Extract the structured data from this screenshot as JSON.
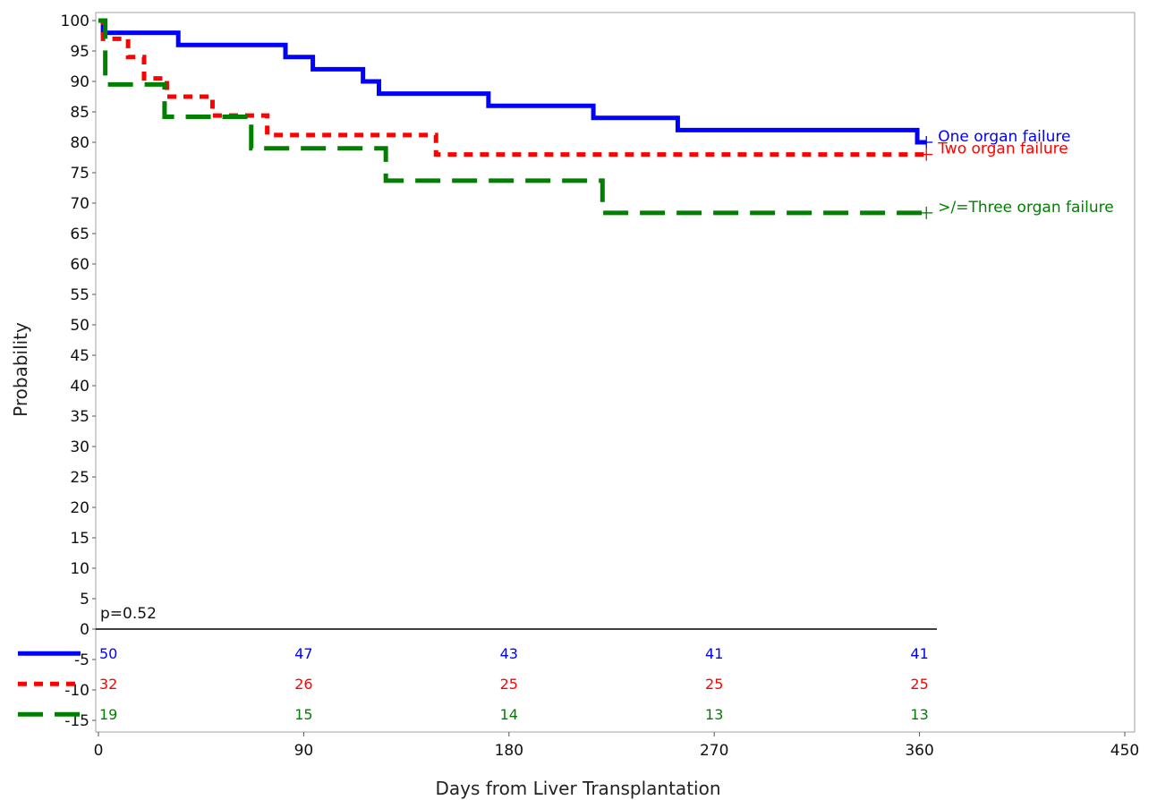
{
  "chart_data": {
    "type": "line",
    "title": "",
    "xlabel": "Days from Liver Transplantation",
    "ylabel": "Probability",
    "xlim": [
      0,
      450
    ],
    "ylim": [
      -17,
      101
    ],
    "x_ticks": [
      0,
      90,
      180,
      270,
      360,
      450
    ],
    "y_ticks": [
      100,
      95,
      90,
      85,
      80,
      75,
      70,
      65,
      60,
      55,
      50,
      45,
      40,
      35,
      30,
      25,
      20,
      15,
      10,
      5,
      0,
      -5,
      -10,
      -15
    ],
    "grid": false,
    "annotation": "p=0.52",
    "series": [
      {
        "name": "One organ failure",
        "color": "#0000ff",
        "dash": "solid",
        "steps": [
          [
            0,
            100
          ],
          [
            2,
            98
          ],
          [
            35,
            96
          ],
          [
            82,
            94
          ],
          [
            94,
            92
          ],
          [
            116,
            90
          ],
          [
            123,
            88
          ],
          [
            171,
            86
          ],
          [
            217,
            84
          ],
          [
            254,
            82
          ],
          [
            359,
            80
          ],
          [
            363,
            80
          ]
        ],
        "censor": [
          [
            363,
            80
          ]
        ],
        "at_risk_y": -4,
        "at_risk": [
          50,
          47,
          43,
          41,
          41
        ]
      },
      {
        "name": "Two organ failure",
        "color": "#ff0000",
        "dash": "dotted",
        "steps": [
          [
            0,
            100
          ],
          [
            2,
            97
          ],
          [
            13,
            94
          ],
          [
            20,
            90.5
          ],
          [
            30,
            87.5
          ],
          [
            50,
            84.4
          ],
          [
            74,
            81.2
          ],
          [
            148,
            78
          ],
          [
            363,
            78
          ]
        ],
        "censor": [
          [
            363,
            78
          ]
        ],
        "at_risk_y": -9,
        "at_risk": [
          32,
          26,
          25,
          25,
          25
        ]
      },
      {
        "name": ">/=Three organ failure",
        "color": "#008000",
        "dash": "dashed",
        "steps": [
          [
            0,
            100
          ],
          [
            3,
            89.5
          ],
          [
            29,
            84.2
          ],
          [
            67,
            79
          ],
          [
            126,
            73.7
          ],
          [
            221,
            68.4
          ],
          [
            363,
            68.4
          ]
        ],
        "censor": [
          [
            363,
            68.4
          ]
        ],
        "at_risk_y": -14,
        "at_risk": [
          19,
          15,
          14,
          13,
          13
        ]
      }
    ],
    "at_risk_x": [
      0,
      90,
      180,
      270,
      360
    ]
  }
}
